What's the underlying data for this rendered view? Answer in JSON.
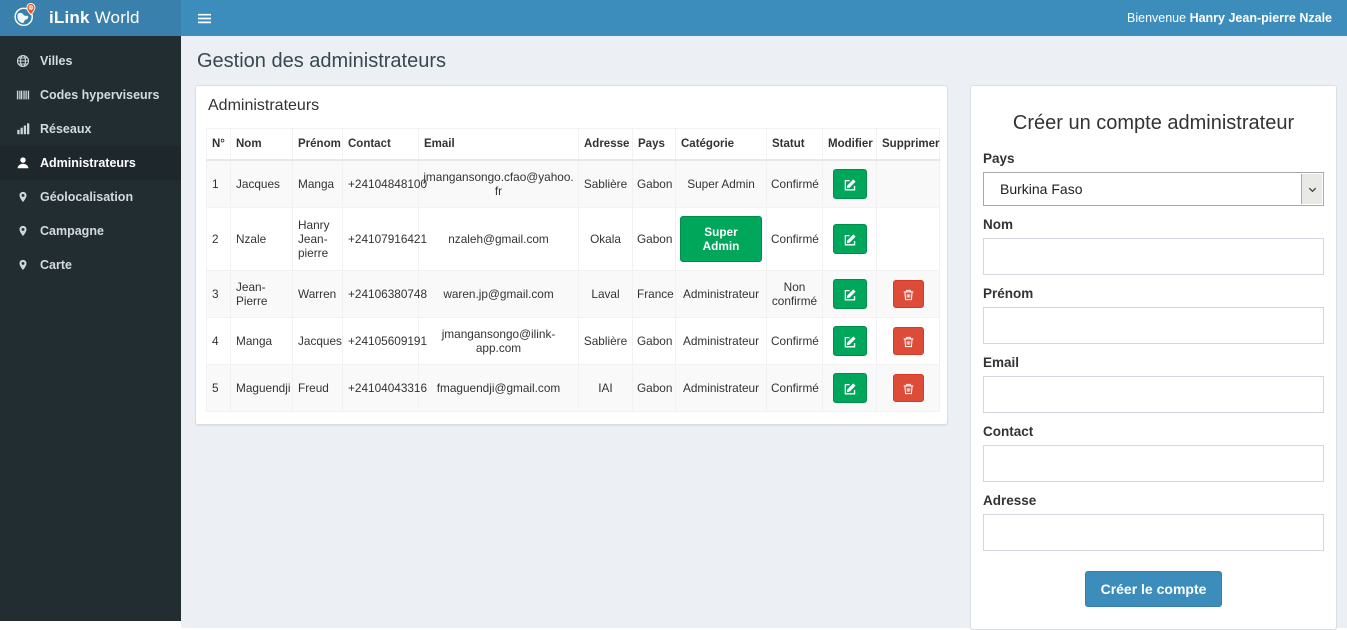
{
  "app": {
    "brand_bold": "iLink",
    "brand_regular": "World",
    "welcome_prefix": "Bienvenue",
    "welcome_user": "Hanry Jean-pierre Nzale"
  },
  "sidebar": {
    "items": [
      {
        "label": "Villes",
        "icon": "globe-icon",
        "active": false
      },
      {
        "label": "Codes hyperviseurs",
        "icon": "barcode-icon",
        "active": false
      },
      {
        "label": "Réseaux",
        "icon": "chart-bars-icon",
        "active": false
      },
      {
        "label": "Administrateurs",
        "icon": "user-icon",
        "active": true
      },
      {
        "label": "Géolocalisation",
        "icon": "map-marker-icon",
        "active": false
      },
      {
        "label": "Campagne",
        "icon": "map-marker-icon",
        "active": false
      },
      {
        "label": "Carte",
        "icon": "map-marker-icon",
        "active": false
      }
    ]
  },
  "page": {
    "title": "Gestion des administrateurs"
  },
  "admin_panel": {
    "title": "Administrateurs",
    "columns": [
      "N°",
      "Nom",
      "Prénom",
      "Contact",
      "Email",
      "Adresse",
      "Pays",
      "Catégorie",
      "Statut",
      "Modifier",
      "Supprimer"
    ],
    "rows": [
      {
        "num": "1",
        "nom": "Jacques",
        "prenom": "Manga",
        "contact": "+24104848100",
        "email": "jmangansongo.cfao@yahoo.fr",
        "adresse": "Sablière",
        "pays": "Gabon",
        "categorie": "Super Admin",
        "categorie_badge": false,
        "statut": "Confirmé",
        "can_delete": false
      },
      {
        "num": "2",
        "nom": "Nzale",
        "prenom": "Hanry Jean-pierre",
        "contact": "+24107916421",
        "email": "nzaleh@gmail.com",
        "adresse": "Okala",
        "pays": "Gabon",
        "categorie": "Super Admin",
        "categorie_badge": true,
        "statut": "Confirmé",
        "can_delete": false
      },
      {
        "num": "3",
        "nom": "Jean-Pierre",
        "prenom": "Warren",
        "contact": "+24106380748",
        "email": "waren.jp@gmail.com",
        "adresse": "Laval",
        "pays": "France",
        "categorie": "Administrateur",
        "categorie_badge": false,
        "statut": "Non confirmé",
        "can_delete": true
      },
      {
        "num": "4",
        "nom": "Manga",
        "prenom": "Jacques",
        "contact": "+24105609191",
        "email": "jmangansongo@ilink-app.com",
        "adresse": "Sablière",
        "pays": "Gabon",
        "categorie": "Administrateur",
        "categorie_badge": false,
        "statut": "Confirmé",
        "can_delete": true
      },
      {
        "num": "5",
        "nom": "Maguendji",
        "prenom": "Freud",
        "contact": "+24104043316",
        "email": "fmaguendji@gmail.com",
        "adresse": "IAI",
        "pays": "Gabon",
        "categorie": "Administrateur",
        "categorie_badge": false,
        "statut": "Confirmé",
        "can_delete": true
      }
    ]
  },
  "form": {
    "title": "Créer un compte administrateur",
    "fields": {
      "pays": {
        "label": "Pays",
        "value": "Burkina Faso"
      },
      "nom": {
        "label": "Nom",
        "value": ""
      },
      "prenom": {
        "label": "Prénom",
        "value": ""
      },
      "email": {
        "label": "Email",
        "value": ""
      },
      "contact": {
        "label": "Contact",
        "value": ""
      },
      "adresse": {
        "label": "Adresse",
        "value": ""
      }
    },
    "submit_label": "Créer le compte"
  },
  "colors": {
    "navbar": "#3c8dbc",
    "logo_bg": "#3a80ac",
    "sidebar_bg": "#222d32",
    "sidebar_active_bg": "#1e282c",
    "content_bg": "#ecf0f5",
    "success_green": "#00a65a",
    "danger_red": "#dd4b39",
    "primary_blue": "#3c8dbc",
    "pin_orange": "#e2571f"
  }
}
